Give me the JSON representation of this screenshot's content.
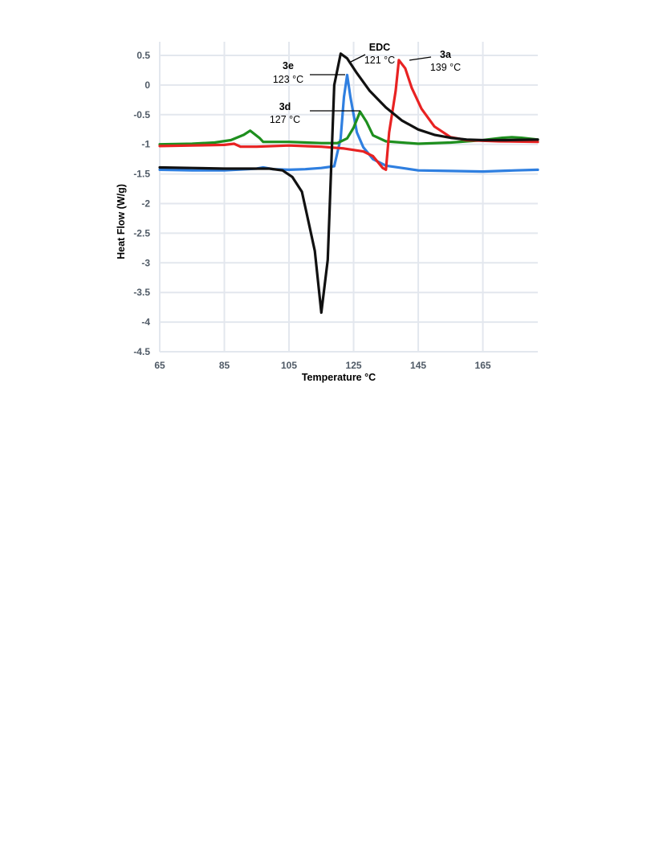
{
  "chart_data": {
    "type": "line",
    "title": "",
    "xlabel": "Temperature °C",
    "ylabel": "Heat Flow (W/g)",
    "xlim": [
      65,
      182
    ],
    "ylim": [
      -4.5,
      0.5
    ],
    "x_ticks": [
      "65",
      "85",
      "105",
      "125",
      "145",
      "165"
    ],
    "y_ticks": [
      "0.5",
      "0",
      "-0.5",
      "-1",
      "-1.5",
      "-2",
      "-2.5",
      "-3",
      "-3.5",
      "-4",
      "-4.5"
    ],
    "grid": true,
    "legend": "none",
    "series": [
      {
        "color": "#2f7fe0",
        "points": [
          [
            65,
            -1.43
          ],
          [
            75,
            -1.44
          ],
          [
            85,
            -1.44
          ],
          [
            95,
            -1.41
          ],
          [
            97,
            -1.39
          ],
          [
            100,
            -1.42
          ],
          [
            105,
            -1.43
          ],
          [
            110,
            -1.42
          ],
          [
            115,
            -1.4
          ],
          [
            119,
            -1.37
          ],
          [
            121,
            -0.9
          ],
          [
            122,
            -0.2
          ],
          [
            123,
            0.17
          ],
          [
            124,
            -0.2
          ],
          [
            126,
            -0.8
          ],
          [
            128,
            -1.05
          ],
          [
            131,
            -1.25
          ],
          [
            135,
            -1.36
          ],
          [
            140,
            -1.4
          ],
          [
            145,
            -1.44
          ],
          [
            155,
            -1.45
          ],
          [
            165,
            -1.46
          ],
          [
            175,
            -1.44
          ],
          [
            182,
            -1.43
          ]
        ]
      },
      {
        "color": "#1e8f1e",
        "points": [
          [
            65,
            -1.0
          ],
          [
            75,
            -0.99
          ],
          [
            82,
            -0.97
          ],
          [
            87,
            -0.93
          ],
          [
            91,
            -0.84
          ],
          [
            93,
            -0.77
          ],
          [
            96,
            -0.9
          ],
          [
            97,
            -0.96
          ],
          [
            105,
            -0.96
          ],
          [
            115,
            -0.98
          ],
          [
            120,
            -0.98
          ],
          [
            123,
            -0.9
          ],
          [
            125,
            -0.72
          ],
          [
            127,
            -0.45
          ],
          [
            129,
            -0.62
          ],
          [
            131,
            -0.85
          ],
          [
            135,
            -0.95
          ],
          [
            145,
            -0.99
          ],
          [
            155,
            -0.97
          ],
          [
            165,
            -0.93
          ],
          [
            171,
            -0.89
          ],
          [
            174,
            -0.88
          ],
          [
            177,
            -0.89
          ],
          [
            182,
            -0.92
          ]
        ]
      },
      {
        "color": "#e82222",
        "points": [
          [
            65,
            -1.03
          ],
          [
            75,
            -1.02
          ],
          [
            85,
            -1.01
          ],
          [
            88,
            -0.99
          ],
          [
            90,
            -1.04
          ],
          [
            95,
            -1.04
          ],
          [
            105,
            -1.02
          ],
          [
            115,
            -1.04
          ],
          [
            122,
            -1.07
          ],
          [
            128,
            -1.12
          ],
          [
            131,
            -1.2
          ],
          [
            134,
            -1.4
          ],
          [
            135,
            -1.43
          ],
          [
            136,
            -0.8
          ],
          [
            138,
            -0.1
          ],
          [
            139,
            0.42
          ],
          [
            141,
            0.28
          ],
          [
            143,
            -0.05
          ],
          [
            146,
            -0.4
          ],
          [
            150,
            -0.7
          ],
          [
            155,
            -0.88
          ],
          [
            160,
            -0.93
          ],
          [
            170,
            -0.95
          ],
          [
            182,
            -0.96
          ]
        ]
      },
      {
        "color": "#111111",
        "points": [
          [
            65,
            -1.39
          ],
          [
            75,
            -1.4
          ],
          [
            85,
            -1.41
          ],
          [
            95,
            -1.41
          ],
          [
            99,
            -1.41
          ],
          [
            103,
            -1.44
          ],
          [
            106,
            -1.55
          ],
          [
            109,
            -1.8
          ],
          [
            111,
            -2.3
          ],
          [
            113,
            -2.8
          ],
          [
            115,
            -3.84
          ],
          [
            117,
            -2.95
          ],
          [
            119,
            0.0
          ],
          [
            121,
            0.53
          ],
          [
            123,
            0.45
          ],
          [
            126,
            0.2
          ],
          [
            130,
            -0.1
          ],
          [
            135,
            -0.38
          ],
          [
            140,
            -0.6
          ],
          [
            145,
            -0.75
          ],
          [
            150,
            -0.84
          ],
          [
            155,
            -0.89
          ],
          [
            160,
            -0.92
          ],
          [
            165,
            -0.93
          ],
          [
            172,
            -0.93
          ],
          [
            182,
            -0.92
          ]
        ]
      }
    ],
    "annotations": [
      {
        "name": "EDC",
        "temp": "121 °C"
      },
      {
        "name": "3a",
        "temp": "139 °C"
      },
      {
        "name": "3e",
        "temp": "123 °C"
      },
      {
        "name": "3d",
        "temp": "127 °C"
      }
    ]
  }
}
